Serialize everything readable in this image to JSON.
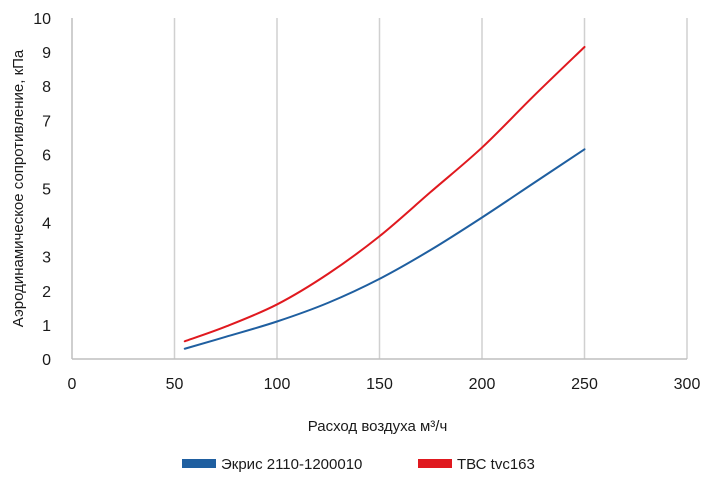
{
  "chart_data": {
    "type": "line",
    "title": "",
    "xlabel": "Расход воздуха м³/ч",
    "ylabel": "Аэродинамическое сопротивление, кПа",
    "xlim": [
      0,
      300
    ],
    "ylim": [
      0,
      10
    ],
    "x_ticks": [
      0,
      50,
      100,
      150,
      200,
      250,
      300
    ],
    "y_ticks": [
      0,
      1,
      2,
      3,
      4,
      5,
      6,
      7,
      8,
      9,
      10
    ],
    "grid": "vertical",
    "legend_position": "bottom",
    "series": [
      {
        "name": "Экрис 2110-1200010",
        "color": "#1f5fa0",
        "x": [
          55,
          75,
          100,
          125,
          150,
          175,
          200,
          225,
          250
        ],
        "y": [
          0.3,
          0.65,
          1.1,
          1.65,
          2.35,
          3.2,
          4.15,
          5.15,
          6.15
        ]
      },
      {
        "name": "ТВС tvc163",
        "color": "#e0191f",
        "x": [
          55,
          75,
          100,
          125,
          150,
          175,
          200,
          225,
          250
        ],
        "y": [
          0.52,
          0.95,
          1.6,
          2.5,
          3.6,
          4.9,
          6.2,
          7.7,
          9.15
        ]
      }
    ]
  }
}
